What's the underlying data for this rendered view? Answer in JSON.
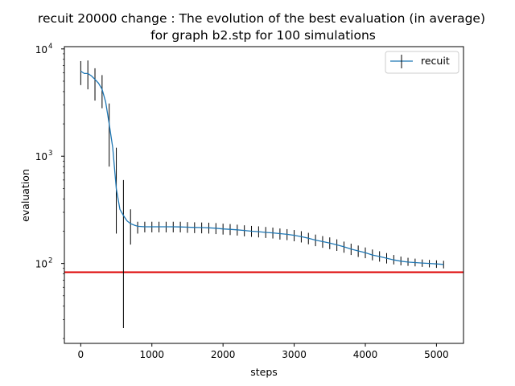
{
  "chart_data": {
    "type": "line",
    "title": "recuit 20000 change : The evolution of the best evaluation (in average)",
    "subtitle": "for graph b2.stp for 100 simulations",
    "xlabel": "steps",
    "ylabel": "evaluation",
    "xlim": [
      -230,
      5380
    ],
    "ylim": [
      18,
      10500
    ],
    "yscale": "log",
    "grid": false,
    "legend_position": "top-right",
    "x_ticks": [
      0,
      1000,
      2000,
      3000,
      4000,
      5000
    ],
    "x_tick_labels": [
      "0",
      "1000",
      "2000",
      "3000",
      "4000",
      "5000"
    ],
    "y_ticks": [
      100,
      1000,
      10000
    ],
    "y_tick_base": "10",
    "y_tick_exponents": [
      "2",
      "3",
      "4"
    ],
    "reference_line": {
      "y": 83,
      "color": "#dd0000"
    },
    "series": [
      {
        "name": "recuit",
        "color": "#1f77b4",
        "x": [
          0,
          50,
          100,
          150,
          200,
          250,
          300,
          350,
          400,
          450,
          500,
          550,
          600,
          650,
          700,
          750,
          800,
          900,
          1000,
          1100,
          1200,
          1300,
          1400,
          1500,
          1600,
          1700,
          1800,
          1900,
          2000,
          2100,
          2200,
          2300,
          2400,
          2500,
          2600,
          2700,
          2800,
          2900,
          3000,
          3100,
          3200,
          3300,
          3400,
          3500,
          3600,
          3700,
          3800,
          3900,
          4000,
          4100,
          4200,
          4300,
          4400,
          4500,
          4600,
          4700,
          4800,
          4900,
          5000,
          5100
        ],
        "y": [
          6200,
          5900,
          5900,
          5600,
          5200,
          4800,
          4200,
          3200,
          2000,
          1200,
          500,
          320,
          280,
          250,
          235,
          228,
          222,
          220,
          220,
          220,
          220,
          220,
          219,
          218,
          217,
          216,
          215,
          213,
          210,
          208,
          206,
          203,
          200,
          198,
          195,
          193,
          190,
          187,
          183,
          178,
          172,
          165,
          160,
          155,
          149,
          143,
          136,
          131,
          126,
          120,
          116,
          112,
          108,
          105,
          103,
          102,
          101,
          100,
          99,
          98
        ]
      }
    ],
    "error_bars": {
      "x": [
        0,
        100,
        200,
        300,
        400,
        500,
        600,
        700,
        800,
        900,
        1000,
        1100,
        1200,
        1300,
        1400,
        1500,
        1600,
        1700,
        1800,
        1900,
        2000,
        2100,
        2200,
        2300,
        2400,
        2500,
        2600,
        2700,
        2800,
        2900,
        3000,
        3100,
        3200,
        3300,
        3400,
        3500,
        3600,
        3700,
        3800,
        3900,
        4000,
        4100,
        4200,
        4300,
        4400,
        4500,
        4600,
        4700,
        4800,
        4900,
        5000,
        5100
      ],
      "low": [
        4600,
        4200,
        3300,
        2800,
        800,
        190,
        25,
        150,
        190,
        195,
        195,
        195,
        195,
        195,
        195,
        193,
        192,
        191,
        190,
        188,
        186,
        184,
        182,
        179,
        177,
        175,
        173,
        171,
        167,
        165,
        161,
        157,
        151,
        145,
        140,
        136,
        131,
        126,
        120,
        115,
        112,
        107,
        104,
        100,
        98,
        96,
        95,
        94,
        93,
        92,
        91,
        90
      ],
      "high": [
        7700,
        7800,
        6600,
        5700,
        3100,
        1200,
        600,
        320,
        245,
        245,
        245,
        245,
        245,
        245,
        245,
        243,
        242,
        241,
        240,
        238,
        235,
        233,
        230,
        227,
        224,
        222,
        219,
        216,
        212,
        209,
        205,
        200,
        193,
        186,
        180,
        175,
        168,
        160,
        153,
        147,
        141,
        135,
        130,
        125,
        120,
        116,
        113,
        111,
        109,
        108,
        107,
        106
      ]
    }
  }
}
